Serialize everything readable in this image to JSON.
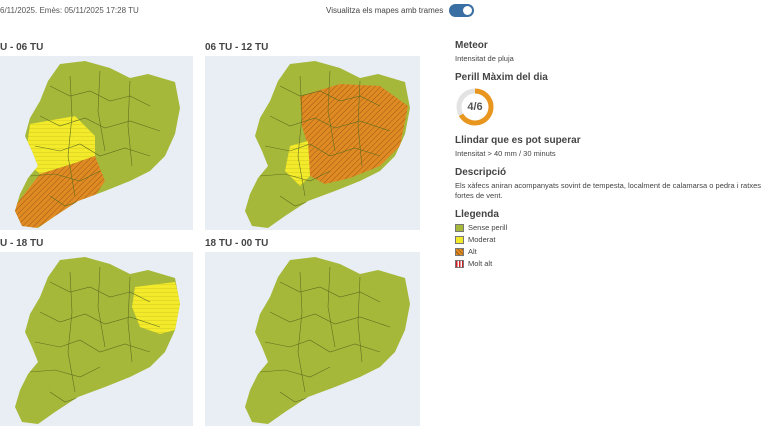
{
  "header": {
    "issued_text": "6/11/2025. Emès: 05/11/2025 17:28 TU",
    "toggle_label": "Visualitza els mapes amb trames",
    "toggle_on": true
  },
  "maps": [
    {
      "title": "U - 06 TU"
    },
    {
      "title": "06 TU - 12 TU"
    },
    {
      "title": "U - 18 TU"
    },
    {
      "title": "18 TU - 00 TU"
    }
  ],
  "side": {
    "meteor_title": "Meteor",
    "meteor_value": "Intensitat de pluja",
    "danger_title": "Perill Màxim del dia",
    "danger_value": "4/6",
    "danger_fraction": 0.667,
    "threshold_title": "Llindar que es pot superar",
    "threshold_value": "Intensitat > 40 mm / 30 minuts",
    "description_title": "Descripció",
    "description_text": "Els xàfecs aniran acompanyats sovint de tempesta, localment de calamarsa o pedra i ratxes fortes de vent."
  },
  "legend": {
    "title": "Llegenda",
    "items": [
      {
        "label": "Sense perill",
        "color": "#a6b83a"
      },
      {
        "label": "Moderat",
        "color": "#f2ea2a"
      },
      {
        "label": "Alt",
        "color": "#e08a23"
      },
      {
        "label": "Molt alt",
        "color": "#cc1f26"
      }
    ]
  },
  "colors": {
    "toggle": "#3a6fa3",
    "gauge_fill": "#e8961e",
    "gauge_track": "#e3e3e3"
  }
}
